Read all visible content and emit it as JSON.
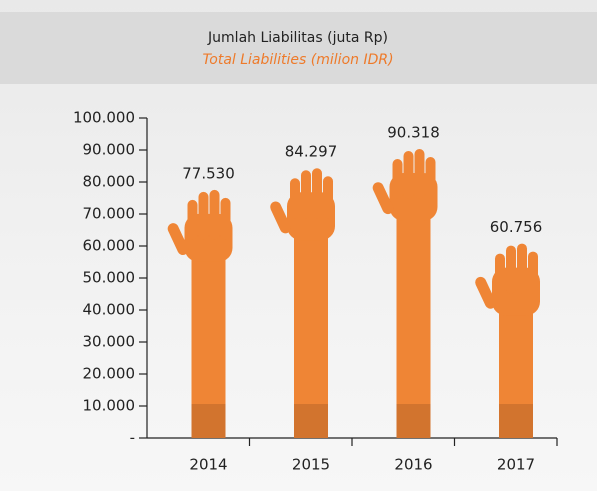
{
  "chart_data": {
    "type": "bar",
    "title": "Jumlah Liabilitas (juta Rp)",
    "subtitle": "Total Liabilities (milion IDR)",
    "categories": [
      "2014",
      "2015",
      "2016",
      "2017"
    ],
    "values": [
      77530,
      84297,
      90318,
      60756
    ],
    "value_labels": [
      "77.530",
      "84.297",
      "90.318",
      "60.756"
    ],
    "color": "#ef8535",
    "ylim": [
      0,
      100000
    ],
    "yticks": [
      {
        "value": 0,
        "label": "-"
      },
      {
        "value": 10000,
        "label": "10.000"
      },
      {
        "value": 20000,
        "label": "20.000"
      },
      {
        "value": 30000,
        "label": "30.000"
      },
      {
        "value": 40000,
        "label": "40.000"
      },
      {
        "value": 50000,
        "label": "50.000"
      },
      {
        "value": 60000,
        "label": "60.000"
      },
      {
        "value": 70000,
        "label": "70.000"
      },
      {
        "value": 80000,
        "label": "80.000"
      },
      {
        "value": 90000,
        "label": "90.000"
      },
      {
        "value": 100000,
        "label": "100.000"
      }
    ]
  }
}
